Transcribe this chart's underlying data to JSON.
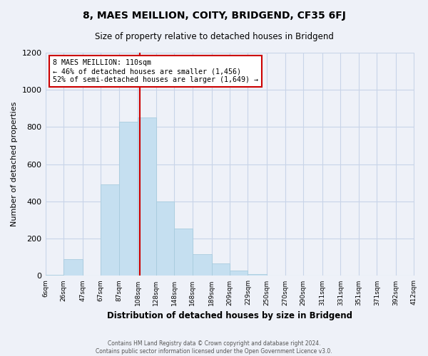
{
  "title": "8, MAES MEILLION, COITY, BRIDGEND, CF35 6FJ",
  "subtitle": "Size of property relative to detached houses in Bridgend",
  "xlabel": "Distribution of detached houses by size in Bridgend",
  "ylabel": "Number of detached properties",
  "bar_color": "#c5dff0",
  "bar_edge_color": "#a8ccde",
  "background_color": "#eef1f8",
  "grid_color": "#c8d4e8",
  "bin_edges": [
    6,
    26,
    47,
    67,
    87,
    108,
    128,
    148,
    168,
    189,
    209,
    229,
    250,
    270,
    290,
    311,
    331,
    351,
    371,
    392,
    412
  ],
  "bin_labels": [
    "6sqm",
    "26sqm",
    "47sqm",
    "67sqm",
    "87sqm",
    "108sqm",
    "128sqm",
    "148sqm",
    "168sqm",
    "189sqm",
    "209sqm",
    "229sqm",
    "250sqm",
    "270sqm",
    "290sqm",
    "311sqm",
    "331sqm",
    "351sqm",
    "371sqm",
    "392sqm",
    "412sqm"
  ],
  "bar_heights": [
    5,
    90,
    0,
    490,
    830,
    850,
    400,
    255,
    115,
    65,
    30,
    10,
    0,
    0,
    0,
    0,
    0,
    0,
    0,
    0
  ],
  "property_sqm": 110,
  "vline_x": 110,
  "vline_color": "#cc0000",
  "annotation_title": "8 MAES MEILLION: 110sqm",
  "annotation_line1": "← 46% of detached houses are smaller (1,456)",
  "annotation_line2": "52% of semi-detached houses are larger (1,649) →",
  "annotation_box_color": "white",
  "annotation_box_edge": "#cc0000",
  "ylim": [
    0,
    1200
  ],
  "yticks": [
    0,
    200,
    400,
    600,
    800,
    1000,
    1200
  ],
  "footer1": "Contains HM Land Registry data © Crown copyright and database right 2024.",
  "footer2": "Contains public sector information licensed under the Open Government Licence v3.0."
}
